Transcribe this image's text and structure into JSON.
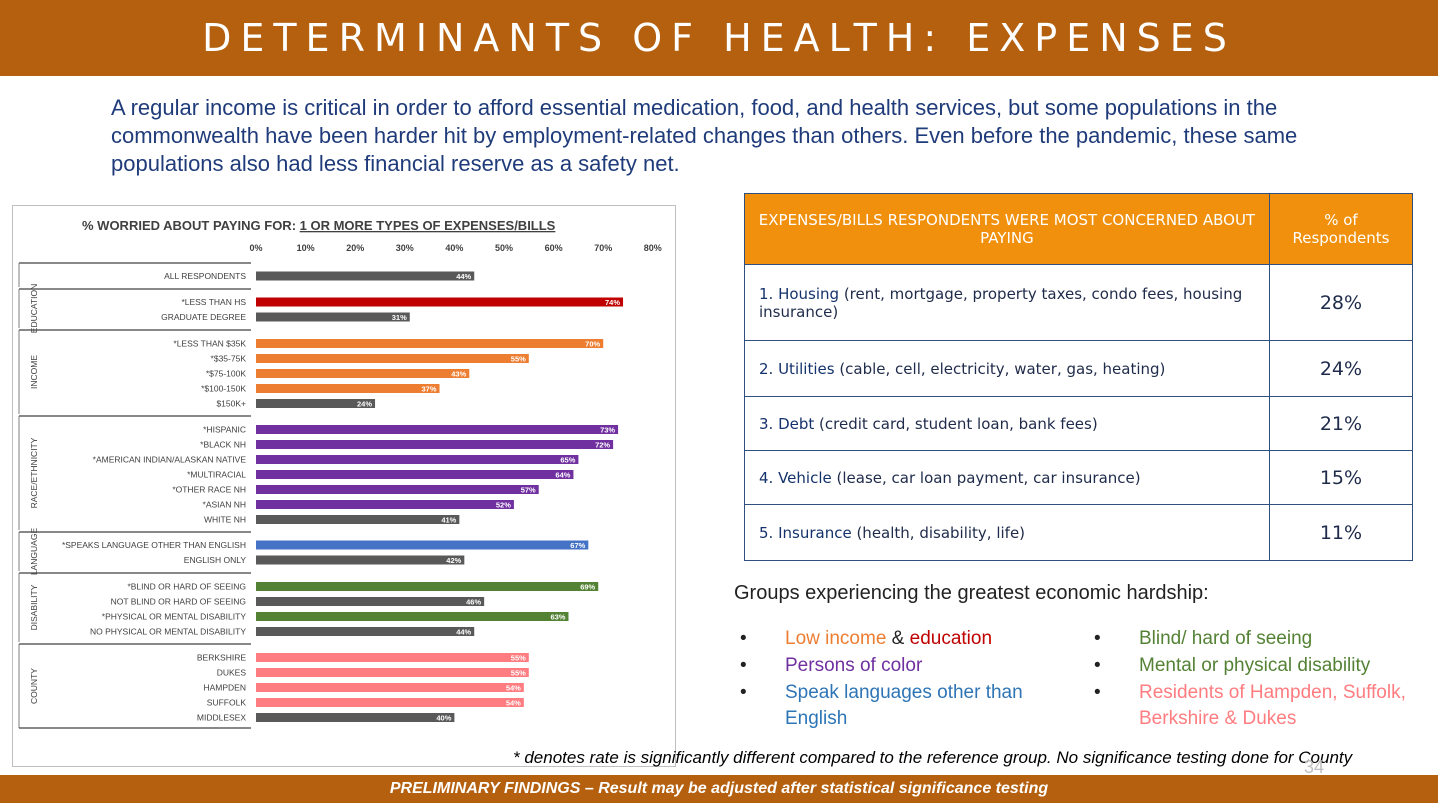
{
  "header": {
    "title": "DETERMINANTS OF HEALTH: EXPENSES"
  },
  "intro": "A regular income is critical in order to afford essential medication, food, and health services, but some populations in the commonwealth have been harder hit by employment-related changes than others. Even before the pandemic, these same populations also had less financial reserve as a safety net.",
  "chart_data": {
    "type": "bar",
    "orientation": "horizontal",
    "title_prefix": "% WORRIED ABOUT PAYING FOR: ",
    "title_emphasis": "1 OR MORE TYPES OF EXPENSES/BILLS",
    "x_ticks": [
      "0%",
      "10%",
      "20%",
      "30%",
      "40%",
      "50%",
      "60%",
      "70%",
      "80%"
    ],
    "xlim": [
      0,
      80
    ],
    "groups": [
      {
        "name": "",
        "bars": [
          {
            "label": "ALL RESPONDENTS",
            "value": 44,
            "color": "#595959"
          }
        ]
      },
      {
        "name": "EDUCATION",
        "bars": [
          {
            "label": "*LESS THAN HS",
            "value": 74,
            "color": "#C00000"
          },
          {
            "label": "GRADUATE DEGREE",
            "value": 31,
            "color": "#595959"
          }
        ]
      },
      {
        "name": "INCOME",
        "bars": [
          {
            "label": "*LESS THAN $35K",
            "value": 70,
            "color": "#ED7D31"
          },
          {
            "label": "*$35-75K",
            "value": 55,
            "color": "#ED7D31"
          },
          {
            "label": "*$75-100K",
            "value": 43,
            "color": "#ED7D31"
          },
          {
            "label": "*$100-150K",
            "value": 37,
            "color": "#ED7D31"
          },
          {
            "label": "$150K+",
            "value": 24,
            "color": "#595959"
          }
        ]
      },
      {
        "name": "RACE/ETHNICITY",
        "bars": [
          {
            "label": "*HISPANIC",
            "value": 73,
            "color": "#7030A0"
          },
          {
            "label": "*BLACK NH",
            "value": 72,
            "color": "#7030A0"
          },
          {
            "label": "*AMERICAN INDIAN/ALASKAN NATIVE",
            "value": 65,
            "color": "#7030A0"
          },
          {
            "label": "*MULTIRACIAL",
            "value": 64,
            "color": "#7030A0"
          },
          {
            "label": "*OTHER RACE NH",
            "value": 57,
            "color": "#7030A0"
          },
          {
            "label": "*ASIAN NH",
            "value": 52,
            "color": "#7030A0"
          },
          {
            "label": "WHITE NH",
            "value": 41,
            "color": "#595959"
          }
        ]
      },
      {
        "name": "LANGUAGE",
        "bars": [
          {
            "label": "*SPEAKS LANGUAGE OTHER THAN ENGLISH",
            "value": 67,
            "color": "#4472C4"
          },
          {
            "label": "ENGLISH ONLY",
            "value": 42,
            "color": "#595959"
          }
        ]
      },
      {
        "name": "DISABILITY",
        "bars": [
          {
            "label": "*BLIND OR HARD OF SEEING",
            "value": 69,
            "color": "#548235"
          },
          {
            "label": "NOT BLIND OR HARD OF SEEING",
            "value": 46,
            "color": "#595959"
          },
          {
            "label": "*PHYSICAL OR MENTAL DISABILITY",
            "value": 63,
            "color": "#548235"
          },
          {
            "label": "NO PHYSICAL OR MENTAL DISABILITY",
            "value": 44,
            "color": "#595959"
          }
        ]
      },
      {
        "name": "COUNTY",
        "bars": [
          {
            "label": "BERKSHIRE",
            "value": 55,
            "color": "#FF7C80"
          },
          {
            "label": "DUKES",
            "value": 55,
            "color": "#FF7C80"
          },
          {
            "label": "HAMPDEN",
            "value": 54,
            "color": "#FF7C80"
          },
          {
            "label": "SUFFOLK",
            "value": 54,
            "color": "#FF7C80"
          },
          {
            "label": "MIDDLESEX",
            "value": 40,
            "color": "#595959"
          }
        ]
      }
    ]
  },
  "table": {
    "header_item": "EXPENSES/BILLS RESPONDENTS WERE MOST CONCERNED ABOUT PAYING",
    "header_pct": "% of Respondents",
    "rows": [
      {
        "label": "1. Housing",
        "detail": " (rent, mortgage, property taxes, condo fees, housing insurance)",
        "pct": "28%"
      },
      {
        "label": "2. Utilities",
        "detail": " (cable, cell, electricity, water, gas, heating)",
        "pct": "24%"
      },
      {
        "label": "3. Debt",
        "detail": " (credit card, student loan, bank fees)",
        "pct": "21%"
      },
      {
        "label": "4. Vehicle",
        "detail": " (lease, car loan payment, car insurance)",
        "pct": "15%"
      },
      {
        "label": "5. Insurance",
        "detail": " (health, disability, life)",
        "pct": "11%"
      }
    ]
  },
  "groups": {
    "title": "Groups experiencing the greatest economic hardship:",
    "bullet": "•",
    "left": {
      "low_income": "Low income",
      "amp": " & ",
      "education": "education",
      "persons_of_color": "Persons of color",
      "speak_languages": "Speak languages other than English"
    },
    "right": {
      "blind": "Blind/ hard of seeing",
      "disability": "Mental or physical disability",
      "residents": "Residents of Hampden, Suffolk, Berkshire & Dukes"
    },
    "colors": {
      "income": "#ED7D31",
      "education": "#C00000",
      "color": "#7030A0",
      "language": "#2E75B6",
      "disability": "#548235",
      "county": "#FF7C80"
    }
  },
  "footnote": "* denotes rate is significantly different compared to the reference group. No significance testing done for County",
  "page_number": "34",
  "footer": "PRELIMINARY FINDINGS – Result may be adjusted after statistical significance testing"
}
